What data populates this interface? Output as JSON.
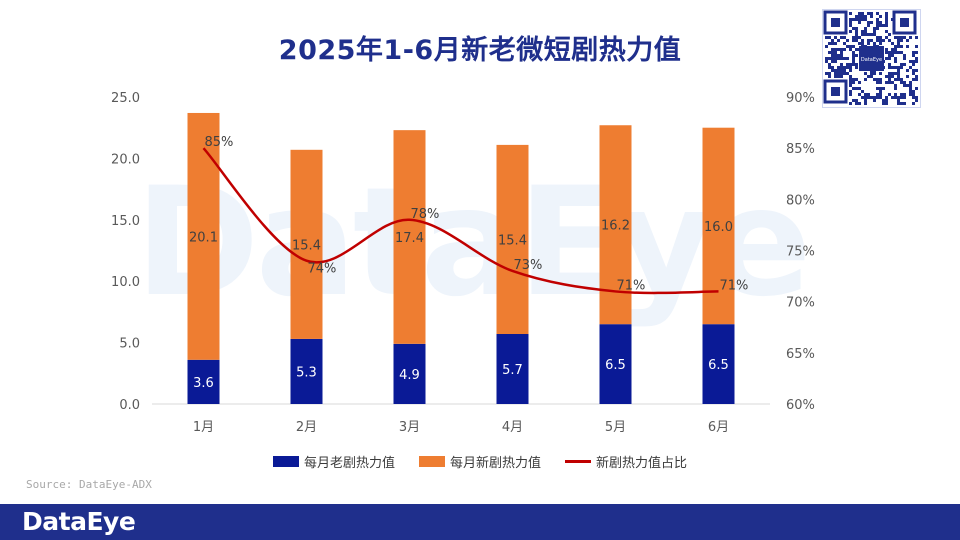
{
  "title": "2025年1-6月新老微短剧热力值",
  "watermark_text": "DataEye",
  "source_text": "Source: DataEye-ADX",
  "footer_logo": "DataEye",
  "qr_center_text": "DataEye",
  "colors": {
    "old_series": "#0a1a96",
    "new_series": "#ee7d31",
    "ratio_line": "#c00000",
    "footer_bg": "#1f2f8c",
    "title": "#1f2f8c"
  },
  "chart_data": {
    "type": "bar",
    "stacked": true,
    "categories": [
      "1月",
      "2月",
      "3月",
      "4月",
      "5月",
      "6月"
    ],
    "series": [
      {
        "name": "每月老剧热力值",
        "type": "bar",
        "axis": "left",
        "values": [
          3.6,
          5.3,
          4.9,
          5.7,
          6.5,
          6.5
        ]
      },
      {
        "name": "每月新剧热力值",
        "type": "bar",
        "axis": "left",
        "values": [
          20.1,
          15.4,
          17.4,
          15.4,
          16.2,
          16.0
        ]
      },
      {
        "name": "新剧热力值占比",
        "type": "line",
        "axis": "right",
        "values": [
          85,
          74,
          78,
          73,
          71,
          71
        ]
      }
    ],
    "left_axis": {
      "range": [
        0,
        25
      ],
      "ticks": [
        "0.0",
        "5.0",
        "10.0",
        "15.0",
        "20.0",
        "25.0"
      ]
    },
    "right_axis": {
      "range": [
        60,
        90
      ],
      "ticks": [
        "60%",
        "65%",
        "70%",
        "75%",
        "80%",
        "85%",
        "90%"
      ]
    },
    "grid": false,
    "legend": "bottom"
  }
}
